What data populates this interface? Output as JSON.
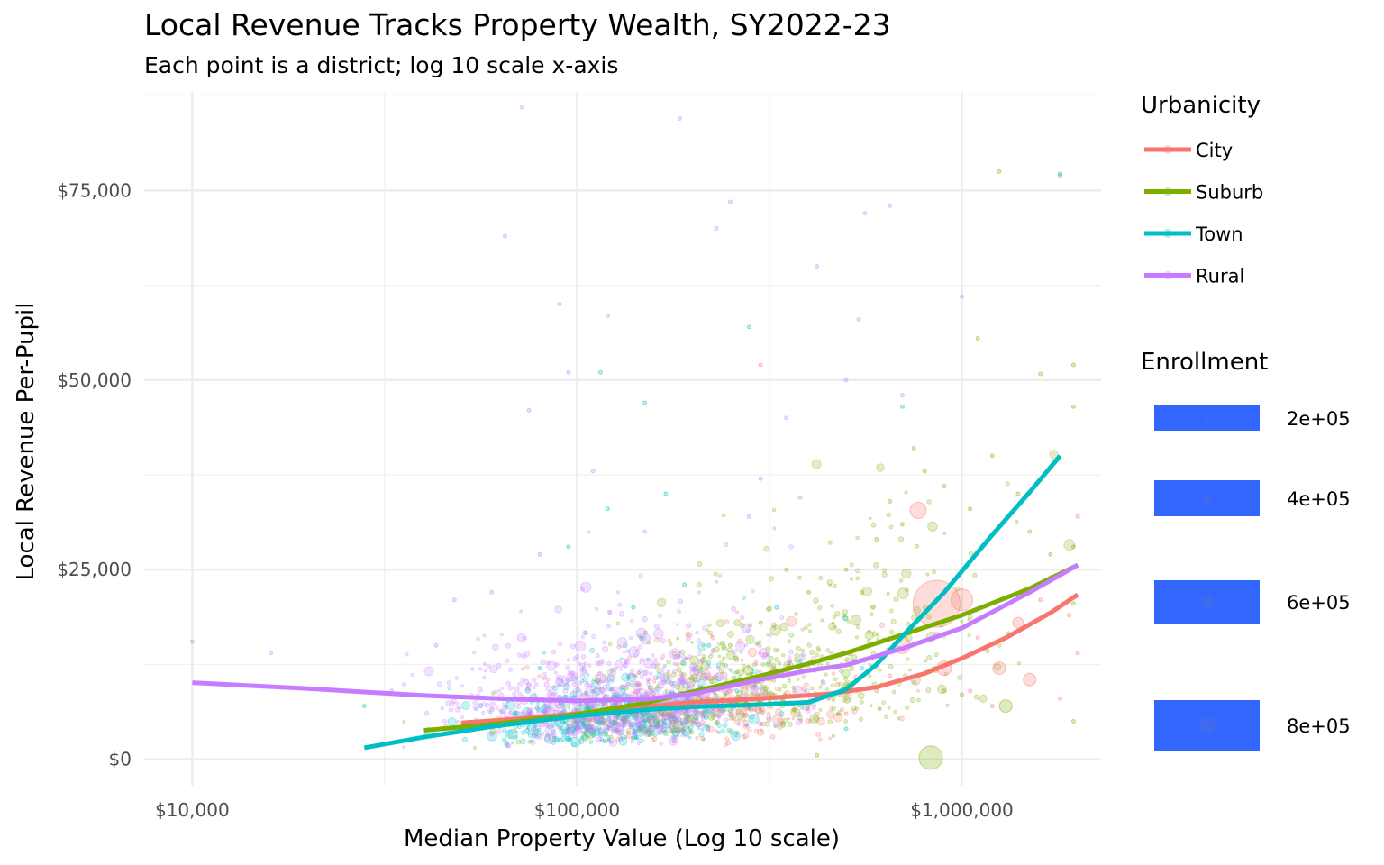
{
  "chart_data": {
    "type": "scatter",
    "title": "Local Revenue Tracks Property Wealth, SY2022-23",
    "subtitle": "Each point is a district; log 10 scale x-axis",
    "xlabel": "Median Property Value (Log 10 scale)",
    "ylabel": "Local Revenue Per-Pupil",
    "x_scale": "log10",
    "xlim": [
      7500,
      2300000
    ],
    "ylim": [
      -3500,
      88000
    ],
    "x_ticks": [
      {
        "value": 10000,
        "label": "$10,000"
      },
      {
        "value": 100000,
        "label": "$100,000"
      },
      {
        "value": 1000000,
        "label": "$1,000,000"
      }
    ],
    "x_minor_ticks": [
      31623,
      316228
    ],
    "y_ticks": [
      {
        "value": 0,
        "label": "$0"
      },
      {
        "value": 25000,
        "label": "$25,000"
      },
      {
        "value": 50000,
        "label": "$50,000"
      },
      {
        "value": 75000,
        "label": "$75,000"
      }
    ],
    "y_minor_ticks": [
      12500,
      37500,
      62500,
      87500
    ],
    "grid": true,
    "legend_position": "right",
    "color_legend": {
      "title": "Urbanicity",
      "items": [
        {
          "label": "City",
          "color": "#F8766D"
        },
        {
          "label": "Suburb",
          "color": "#7CAE00"
        },
        {
          "label": "Town",
          "color": "#00BFC4"
        },
        {
          "label": "Rural",
          "color": "#C77CFF"
        }
      ]
    },
    "size_legend": {
      "title": "Enrollment",
      "items": [
        {
          "label": "2e+05",
          "value": 200000
        },
        {
          "label": "4e+05",
          "value": 400000
        },
        {
          "label": "6e+05",
          "value": 600000
        },
        {
          "label": "8e+05",
          "value": 800000
        }
      ],
      "key_color": "#3366FF"
    },
    "series": [
      {
        "name": "City",
        "color": "#F8766D",
        "smooth": {
          "x": [
            50000,
            70000,
            100000,
            150000,
            200000,
            300000,
            450000,
            600000,
            800000,
            1000000,
            1300000,
            1700000,
            2000000
          ],
          "y": [
            4800,
            5300,
            6000,
            6900,
            7500,
            8000,
            8600,
            9500,
            11300,
            13300,
            16000,
            19300,
            21700
          ]
        },
        "points": [
          [
            860000,
            20500
          ],
          [
            1000000,
            21000
          ],
          [
            770000,
            32800
          ],
          [
            300000,
            52000
          ],
          [
            1500000,
            10500
          ],
          [
            1250000,
            12000
          ],
          [
            1050000,
            9000
          ],
          [
            1400000,
            18000
          ],
          [
            700000,
            15000
          ],
          [
            900000,
            12000
          ],
          [
            600000,
            9000
          ],
          [
            450000,
            8000
          ],
          [
            1200000,
            7000
          ],
          [
            2000000,
            32000
          ],
          [
            1700000,
            24000
          ],
          [
            500000,
            6000
          ],
          [
            2000000,
            14000
          ],
          [
            380000,
            34500
          ],
          [
            1600000,
            21000
          ],
          [
            650000,
            11000
          ],
          [
            1100000,
            16000
          ],
          [
            1900000,
            19000
          ],
          [
            300000,
            6500
          ],
          [
            200000,
            7000
          ],
          [
            1800000,
            8000
          ]
        ]
      },
      {
        "name": "Suburb",
        "color": "#7CAE00",
        "smooth": {
          "x": [
            40000,
            60000,
            100000,
            150000,
            200000,
            300000,
            400000,
            500000,
            700000,
            1000000,
            1500000,
            2000000
          ],
          "y": [
            3800,
            4600,
            5900,
            7400,
            8900,
            11000,
            12600,
            14000,
            16400,
            19000,
            22500,
            25600
          ]
        },
        "points": [
          [
            830000,
            200
          ],
          [
            1300000,
            7000
          ],
          [
            1800000,
            77000
          ],
          [
            1250000,
            77500
          ],
          [
            1100000,
            55500
          ],
          [
            1950000,
            5000
          ],
          [
            1950000,
            52000
          ],
          [
            1950000,
            46500
          ],
          [
            1600000,
            50800
          ],
          [
            700000,
            31000
          ],
          [
            900000,
            36000
          ],
          [
            1050000,
            33000
          ],
          [
            500000,
            25000
          ],
          [
            600000,
            29000
          ],
          [
            400000,
            22000
          ],
          [
            1500000,
            30000
          ],
          [
            1700000,
            27000
          ],
          [
            300000,
            18000
          ],
          [
            350000,
            25000
          ],
          [
            800000,
            38000
          ],
          [
            750000,
            41000
          ],
          [
            1200000,
            40000
          ],
          [
            1400000,
            35000
          ],
          [
            650000,
            34000
          ],
          [
            550000,
            22000
          ],
          [
            250000,
            15000
          ],
          [
            1000000,
            8500
          ],
          [
            900000,
            9000
          ],
          [
            420000,
            500
          ],
          [
            1950000,
            20500
          ],
          [
            1950000,
            28000
          ]
        ]
      },
      {
        "name": "Town",
        "color": "#00BFC4",
        "smooth": {
          "x": [
            28000,
            40000,
            60000,
            100000,
            150000,
            200000,
            300000,
            400000,
            500000,
            600000,
            700000,
            900000,
            1200000,
            1500000,
            1800000
          ],
          "y": [
            1500,
            2900,
            4300,
            5700,
            6500,
            6900,
            7200,
            7500,
            9200,
            12500,
            16200,
            22000,
            29600,
            35200,
            40000
          ]
        },
        "points": [
          [
            115000,
            51000
          ],
          [
            150000,
            47000
          ],
          [
            280000,
            57000
          ],
          [
            28000,
            7000
          ],
          [
            1800000,
            77200
          ],
          [
            95000,
            28000
          ],
          [
            190000,
            23000
          ],
          [
            450000,
            8500
          ],
          [
            550000,
            12000
          ],
          [
            700000,
            46500
          ],
          [
            120000,
            33000
          ],
          [
            220000,
            15000
          ],
          [
            80000,
            12000
          ],
          [
            330000,
            20000
          ],
          [
            170000,
            35000
          ],
          [
            60000,
            5000
          ],
          [
            260000,
            9000
          ],
          [
            380000,
            13000
          ],
          [
            140000,
            20000
          ],
          [
            500000,
            4000
          ]
        ]
      },
      {
        "name": "Rural",
        "color": "#C77CFF",
        "smooth": {
          "x": [
            10000,
            20000,
            40000,
            70000,
            100000,
            150000,
            200000,
            300000,
            400000,
            500000,
            700000,
            1000000,
            1500000,
            2000000
          ],
          "y": [
            10100,
            9300,
            8400,
            7900,
            7700,
            7900,
            8600,
            10500,
            11700,
            12400,
            14600,
            17300,
            22000,
            25600
          ]
        },
        "points": [
          [
            10000,
            15500
          ],
          [
            16000,
            14000
          ],
          [
            72000,
            86000
          ],
          [
            185000,
            84500
          ],
          [
            250000,
            73500
          ],
          [
            560000,
            72000
          ],
          [
            650000,
            73000
          ],
          [
            65000,
            69000
          ],
          [
            230000,
            70000
          ],
          [
            90000,
            60000
          ],
          [
            120000,
            58500
          ],
          [
            420000,
            65000
          ],
          [
            540000,
            58000
          ],
          [
            75000,
            46000
          ],
          [
            48000,
            21000
          ],
          [
            43000,
            15000
          ],
          [
            60000,
            22000
          ],
          [
            33000,
            9000
          ],
          [
            80000,
            27000
          ],
          [
            150000,
            30000
          ],
          [
            200000,
            12000
          ],
          [
            350000,
            45000
          ],
          [
            280000,
            32000
          ],
          [
            110000,
            38000
          ],
          [
            95000,
            51000
          ],
          [
            300000,
            37000
          ],
          [
            500000,
            50000
          ],
          [
            1000000,
            61000
          ],
          [
            700000,
            48000
          ]
        ]
      }
    ]
  }
}
